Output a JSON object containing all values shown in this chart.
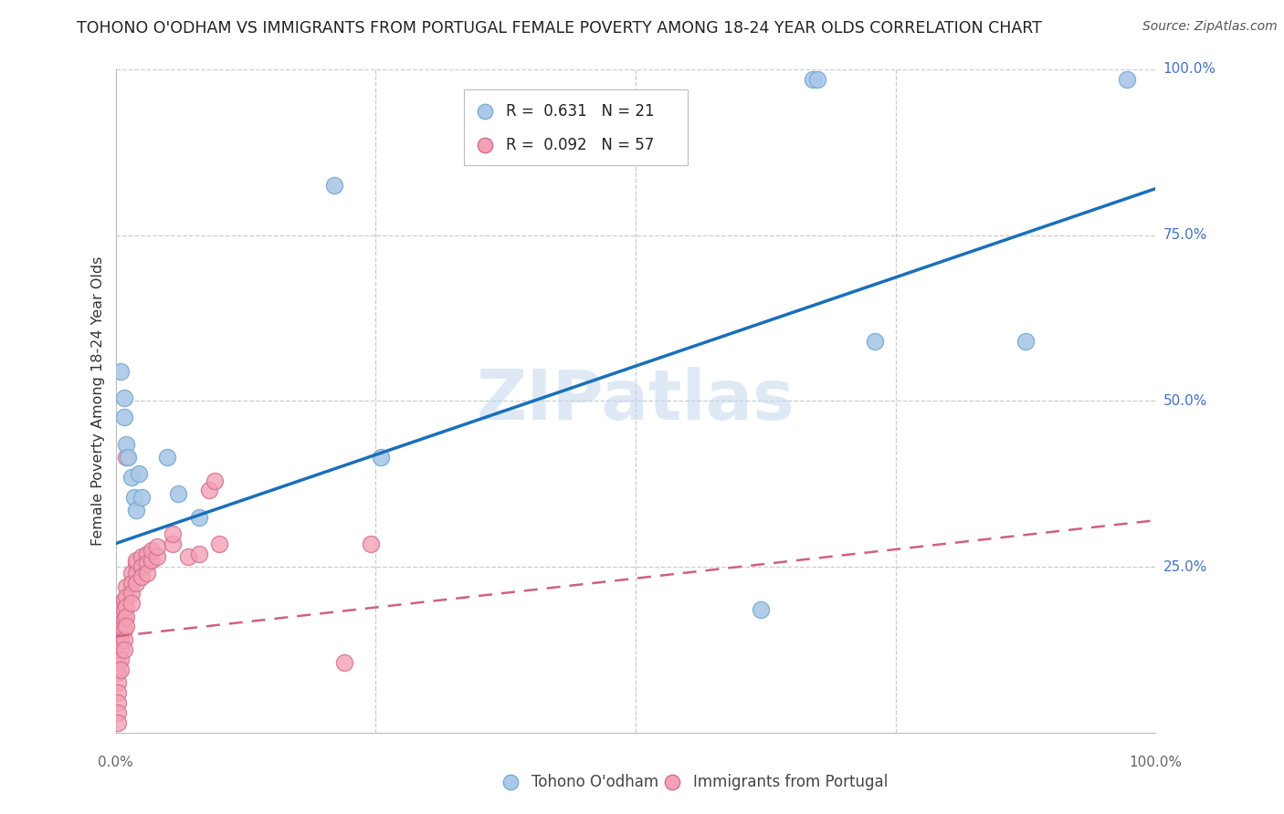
{
  "title": "TOHONO O'ODHAM VS IMMIGRANTS FROM PORTUGAL FEMALE POVERTY AMONG 18-24 YEAR OLDS CORRELATION CHART",
  "source": "Source: ZipAtlas.com",
  "ylabel": "Female Poverty Among 18-24 Year Olds",
  "blue_R": "0.631",
  "blue_N": "21",
  "pink_R": "0.092",
  "pink_N": "57",
  "legend_label_blue": "Tohono O'odham",
  "legend_label_pink": "Immigrants from Portugal",
  "watermark": "ZIPatlas",
  "blue_points": [
    [
      0.005,
      0.545
    ],
    [
      0.008,
      0.505
    ],
    [
      0.008,
      0.475
    ],
    [
      0.01,
      0.435
    ],
    [
      0.012,
      0.415
    ],
    [
      0.015,
      0.385
    ],
    [
      0.018,
      0.355
    ],
    [
      0.02,
      0.335
    ],
    [
      0.022,
      0.39
    ],
    [
      0.025,
      0.355
    ],
    [
      0.05,
      0.415
    ],
    [
      0.06,
      0.36
    ],
    [
      0.08,
      0.325
    ],
    [
      0.21,
      0.825
    ],
    [
      0.255,
      0.415
    ],
    [
      0.62,
      0.185
    ],
    [
      0.73,
      0.59
    ],
    [
      0.875,
      0.59
    ],
    [
      0.972,
      0.985
    ],
    [
      0.67,
      0.985
    ],
    [
      0.675,
      0.985
    ]
  ],
  "pink_points": [
    [
      0.002,
      0.165
    ],
    [
      0.002,
      0.15
    ],
    [
      0.002,
      0.135
    ],
    [
      0.002,
      0.12
    ],
    [
      0.002,
      0.105
    ],
    [
      0.002,
      0.09
    ],
    [
      0.002,
      0.075
    ],
    [
      0.002,
      0.06
    ],
    [
      0.002,
      0.045
    ],
    [
      0.002,
      0.03
    ],
    [
      0.002,
      0.015
    ],
    [
      0.005,
      0.185
    ],
    [
      0.005,
      0.17
    ],
    [
      0.005,
      0.155
    ],
    [
      0.005,
      0.14
    ],
    [
      0.005,
      0.125
    ],
    [
      0.005,
      0.11
    ],
    [
      0.005,
      0.095
    ],
    [
      0.008,
      0.2
    ],
    [
      0.008,
      0.185
    ],
    [
      0.008,
      0.17
    ],
    [
      0.008,
      0.155
    ],
    [
      0.008,
      0.14
    ],
    [
      0.008,
      0.125
    ],
    [
      0.01,
      0.22
    ],
    [
      0.01,
      0.205
    ],
    [
      0.01,
      0.19
    ],
    [
      0.01,
      0.175
    ],
    [
      0.01,
      0.16
    ],
    [
      0.01,
      0.415
    ],
    [
      0.015,
      0.24
    ],
    [
      0.015,
      0.225
    ],
    [
      0.015,
      0.21
    ],
    [
      0.015,
      0.195
    ],
    [
      0.02,
      0.255
    ],
    [
      0.02,
      0.24
    ],
    [
      0.02,
      0.225
    ],
    [
      0.02,
      0.26
    ],
    [
      0.025,
      0.265
    ],
    [
      0.025,
      0.25
    ],
    [
      0.025,
      0.235
    ],
    [
      0.03,
      0.27
    ],
    [
      0.03,
      0.255
    ],
    [
      0.03,
      0.24
    ],
    [
      0.035,
      0.26
    ],
    [
      0.035,
      0.275
    ],
    [
      0.04,
      0.265
    ],
    [
      0.04,
      0.28
    ],
    [
      0.055,
      0.285
    ],
    [
      0.055,
      0.3
    ],
    [
      0.07,
      0.265
    ],
    [
      0.08,
      0.27
    ],
    [
      0.09,
      0.365
    ],
    [
      0.095,
      0.38
    ],
    [
      0.1,
      0.285
    ],
    [
      0.22,
      0.105
    ],
    [
      0.245,
      0.285
    ]
  ],
  "blue_line_x": [
    0.0,
    1.0
  ],
  "blue_line_y": [
    0.285,
    0.82
  ],
  "pink_line_x": [
    0.0,
    1.0
  ],
  "pink_line_y": [
    0.145,
    0.32
  ],
  "blue_scatter_color": "#aac8e8",
  "blue_scatter_edge": "#7aadd0",
  "pink_scatter_color": "#f4a0b5",
  "pink_scatter_edge": "#d07090",
  "blue_line_color": "#1a6fba",
  "pink_line_color": "#d06080",
  "right_tick_color": "#4472C4",
  "bottom_tick_color": "#666666",
  "xlim": [
    0.0,
    1.0
  ],
  "ylim": [
    0.0,
    1.0
  ],
  "grid_color": "#cccccc",
  "background_color": "#ffffff",
  "title_fontsize": 12.5,
  "source_fontsize": 10,
  "tick_fontsize": 11,
  "ylabel_fontsize": 11.5,
  "legend_fontsize": 12,
  "watermark_fontsize": 55
}
